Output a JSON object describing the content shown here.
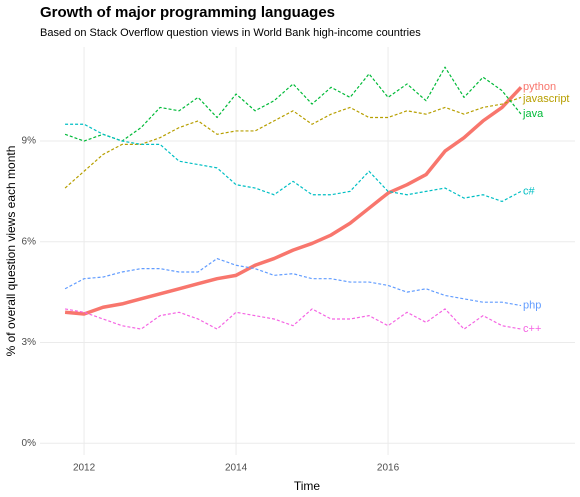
{
  "chart_data": {
    "type": "line",
    "title": "Growth of major programming languages",
    "subtitle": "Based on Stack Overflow question views in World Bank high-income countries",
    "x_label": "Time",
    "y_label": "% of overall question views each month",
    "x": [
      2011.75,
      2012,
      2012.25,
      2012.5,
      2012.75,
      2013,
      2013.25,
      2013.5,
      2013.75,
      2014,
      2014.25,
      2014.5,
      2014.75,
      2015,
      2015.25,
      2015.5,
      2015.75,
      2016,
      2016.25,
      2016.5,
      2016.75,
      2017,
      2017.25,
      2017.5,
      2017.75
    ],
    "xlim": [
      2011.42,
      2018.46
    ],
    "xticks": [
      2012,
      2014,
      2016
    ],
    "ylim": [
      -0.35,
      11.8
    ],
    "yticks": [
      {
        "value": 0,
        "label": "0%"
      },
      {
        "value": 3,
        "label": "3%"
      },
      {
        "value": 6,
        "label": "6%"
      },
      {
        "value": 9,
        "label": "9%"
      }
    ],
    "grid": true,
    "series": [
      {
        "name": "python",
        "color": "#F8766D",
        "linestyle": "solid",
        "values": [
          3.9,
          3.85,
          4.05,
          4.15,
          4.3,
          4.45,
          4.6,
          4.75,
          4.9,
          5.0,
          5.3,
          5.5,
          5.75,
          5.95,
          6.2,
          6.55,
          7.0,
          7.45,
          7.7,
          8.0,
          8.7,
          9.1,
          9.6,
          10.0,
          10.6
        ]
      },
      {
        "name": "javascript",
        "color": "#B79F00",
        "linestyle": "dashed",
        "values": [
          7.6,
          8.1,
          8.6,
          8.9,
          8.9,
          9.1,
          9.4,
          9.6,
          9.2,
          9.3,
          9.3,
          9.6,
          9.9,
          9.5,
          9.8,
          10.0,
          9.7,
          9.7,
          9.9,
          9.8,
          10.0,
          9.8,
          10.0,
          10.1,
          10.3
        ]
      },
      {
        "name": "java",
        "color": "#00BA38",
        "linestyle": "dashed",
        "values": [
          9.2,
          9.0,
          9.2,
          9.0,
          9.4,
          10.0,
          9.9,
          10.3,
          9.7,
          10.4,
          9.9,
          10.2,
          10.7,
          10.1,
          10.6,
          10.3,
          11.0,
          10.3,
          10.7,
          10.2,
          11.2,
          10.3,
          10.9,
          10.5,
          9.8
        ]
      },
      {
        "name": "c#",
        "color": "#00BFC4",
        "linestyle": "dashed",
        "values": [
          9.5,
          9.5,
          9.2,
          9.0,
          8.9,
          8.9,
          8.4,
          8.3,
          8.2,
          7.7,
          7.6,
          7.4,
          7.8,
          7.4,
          7.4,
          7.5,
          8.1,
          7.5,
          7.4,
          7.5,
          7.6,
          7.3,
          7.4,
          7.2,
          7.5
        ]
      },
      {
        "name": "php",
        "color": "#619CFF",
        "linestyle": "dashed",
        "values": [
          4.6,
          4.9,
          4.95,
          5.1,
          5.2,
          5.2,
          5.1,
          5.1,
          5.5,
          5.3,
          5.2,
          5.0,
          5.05,
          4.9,
          4.9,
          4.8,
          4.8,
          4.7,
          4.5,
          4.6,
          4.4,
          4.3,
          4.2,
          4.2,
          4.1
        ]
      },
      {
        "name": "c++",
        "color": "#F564E3",
        "linestyle": "dashed",
        "values": [
          4.0,
          3.9,
          3.7,
          3.5,
          3.4,
          3.8,
          3.9,
          3.7,
          3.4,
          3.9,
          3.8,
          3.7,
          3.5,
          4.0,
          3.7,
          3.7,
          3.8,
          3.5,
          3.9,
          3.6,
          4.0,
          3.4,
          3.8,
          3.5,
          3.4
        ]
      }
    ]
  }
}
